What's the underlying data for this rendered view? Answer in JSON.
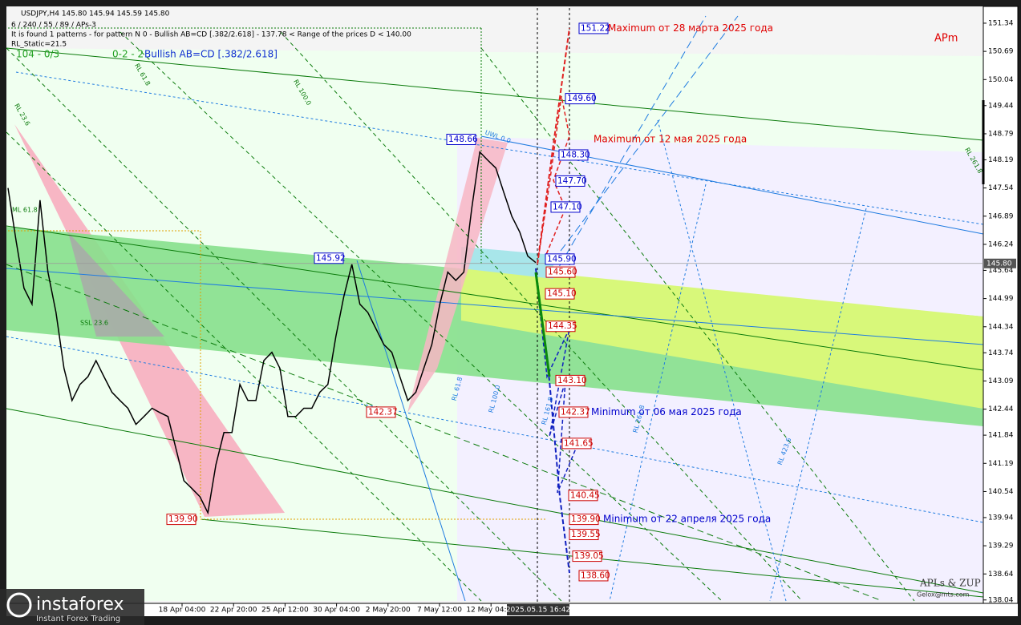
{
  "chart_data": {
    "type": "line",
    "header": [
      "USDJPY,H4  145.80 145.94 145.59 145.80",
      "6 / 240 / 55 / 89 / APs-3",
      "It is found 1 patterns  -  for pattern N 0 - Bullish AB=CD [.382/2.618] - 137.78 < Range of the prices D < 140.00",
      "RL_Static=21.5"
    ],
    "pattern_count": "104 - 0/3",
    "pattern_index": "0-2 - 2",
    "pattern_name": "Bullish AB=CD [.382/2.618]",
    "corner_label": "APm",
    "signature": [
      "APLs & ZUP",
      "Gelox@mts.com"
    ],
    "logo": [
      "instaforex",
      "Instant Forex Trading"
    ],
    "series": [
      {
        "name": "USDJPY,H4",
        "color": "#000000",
        "values": [
          147.54,
          146.33,
          145.23,
          144.86,
          147.26,
          145.6,
          144.67,
          143.38,
          142.64,
          143.01,
          143.19,
          143.56,
          143.19,
          142.83,
          142.64,
          142.46,
          142.09,
          142.27,
          142.46,
          142.36,
          142.27,
          141.53,
          140.79,
          140.61,
          140.42,
          140.05,
          141.16,
          141.9,
          141.9,
          143.01,
          142.64,
          142.64,
          143.56,
          143.75,
          143.38,
          142.27,
          142.27,
          142.46,
          142.46,
          142.83,
          143.01,
          144.12,
          145.04,
          145.78,
          144.86,
          144.67,
          144.3,
          143.93,
          143.75,
          143.19,
          142.64,
          142.83,
          143.38,
          143.93,
          144.86,
          145.6,
          145.41,
          145.6,
          147.07,
          148.37,
          148.18,
          148.0,
          147.44,
          146.89,
          146.52,
          145.97,
          145.82
        ]
      }
    ],
    "current_price": {
      "value": 145.8,
      "label": "145.80"
    },
    "xticks": [
      "18 Apr 04:00",
      "22 Apr 20:00",
      "25 Apr 12:00",
      "30 Apr 04:00",
      "2 May 20:00",
      "7 May 12:00",
      "12 May 04:00"
    ],
    "cursor_label": "2025.05.15 16:42",
    "ylim": [
      137.98,
      151.69
    ],
    "yticks": [
      151.34,
      150.69,
      150.04,
      149.44,
      148.79,
      148.19,
      147.54,
      146.89,
      146.24,
      145.64,
      144.99,
      144.34,
      143.74,
      143.09,
      142.44,
      141.84,
      141.19,
      140.54,
      139.94,
      139.29,
      138.64,
      138.04
    ],
    "grid": false,
    "levels": [
      {
        "value": 151.22,
        "color": "#0000cc"
      },
      {
        "value": 149.6,
        "label": "149.60",
        "color": "#0000cc"
      },
      {
        "value": 148.66,
        "color": "#0000cc"
      },
      {
        "value": 148.3,
        "label": "148.30",
        "color": "#0000cc"
      },
      {
        "value": 147.7,
        "label": "147.70",
        "color": "#0000cc"
      },
      {
        "value": 147.1,
        "label": "147.10",
        "color": "#0000cc"
      },
      {
        "value": 145.9,
        "label": "145.90",
        "color": "#0000cc"
      },
      {
        "value": 145.92,
        "color": "#0000cc"
      },
      {
        "value": 145.6,
        "label": "145.60",
        "color": "#cc0000"
      },
      {
        "value": 145.1,
        "label": "145.10",
        "color": "#cc0000"
      },
      {
        "value": 144.35,
        "color": "#cc0000"
      },
      {
        "value": 143.1,
        "label": "143.10",
        "color": "#cc0000"
      },
      {
        "value": 142.37,
        "color": "#cc0000"
      },
      {
        "value": 142.37,
        "color": "#cc0000"
      },
      {
        "value": 141.65,
        "color": "#cc0000"
      },
      {
        "value": 140.45,
        "color": "#cc0000"
      },
      {
        "value": 139.9,
        "label": "139.90",
        "color": "#cc0000"
      },
      {
        "value": 139.9,
        "label": "139.90",
        "color": "#cc0000"
      },
      {
        "value": 139.55,
        "color": "#cc0000"
      },
      {
        "value": 139.05,
        "color": "#cc0000"
      },
      {
        "value": 138.6,
        "label": "138.60",
        "color": "#cc0000"
      }
    ],
    "annotations": [
      {
        "text": "Maximum от 28 марта 2025 года",
        "color": "#e00000"
      },
      {
        "text": "Maximum от 12 мая 2025 года",
        "color": "#e00000"
      },
      {
        "text": "Minimum от 06 мая 2025 года",
        "color": "#0000cc"
      },
      {
        "text": "Minimum от 22 апреля 2025 года",
        "color": "#0000cc"
      }
    ],
    "fib_labels": [
      "RL 23.6",
      "RL 61.8",
      "RL 100.0",
      "UWL 0.0",
      "ML 61.8",
      "SSL 23.6",
      "RL 61.8",
      "RL 100.0",
      "RL 161.8",
      "RL 261.8",
      "RL 423.6",
      "RL 261.8"
    ]
  }
}
